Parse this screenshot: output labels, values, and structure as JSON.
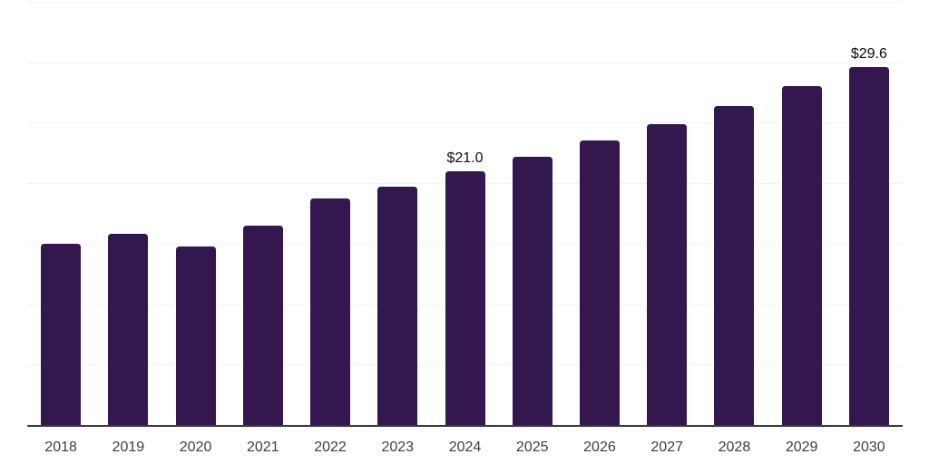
{
  "chart_data": {
    "type": "bar",
    "title": "",
    "xlabel": "",
    "ylabel": "",
    "categories": [
      "2018",
      "2019",
      "2020",
      "2021",
      "2022",
      "2023",
      "2024",
      "2025",
      "2026",
      "2027",
      "2028",
      "2029",
      "2030"
    ],
    "values": [
      15.0,
      15.8,
      14.8,
      16.5,
      18.7,
      19.7,
      21.0,
      22.2,
      23.5,
      24.9,
      26.4,
      28.0,
      29.6
    ],
    "data_labels": {
      "2024": "$21.0",
      "2030": "$29.6"
    },
    "ylim": [
      0,
      35
    ],
    "gridline_step": 5,
    "grid": true,
    "legend": false,
    "y_tick_labels_visible": false,
    "colors": {
      "background": "#ffffff",
      "bar": "#34174e",
      "data_label": "#0d0d0d",
      "axis_text": "#3d3d3d",
      "gridline": "#f2f2f2",
      "axis_line": "#3a3a3a"
    }
  }
}
